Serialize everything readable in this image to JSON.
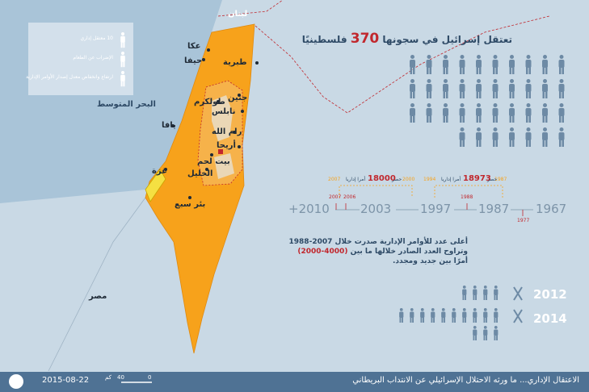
{
  "map": {
    "labels": [
      "لبنان",
      "عكا",
      "حيفا",
      "طبرية",
      "طولكرم",
      "نابلس",
      "جنين",
      "رام الله",
      "أريحا",
      "بيت لحم",
      "الخليل",
      "يافا",
      "غزة",
      "بئر سبع",
      "البحر المتوسط",
      "مصر"
    ]
  },
  "legend": {
    "items": [
      "10 معتقل إداري",
      "الإضراب عن الطعام",
      "ارتفاع وانخفاض معدل إصدار الأوامر الإدارية"
    ]
  },
  "headline": {
    "before": "تعتقل إسرائيل في سجونها",
    "number": "370",
    "after": "فلسطينيًا"
  },
  "timeline": {
    "years": [
      "1967",
      "1987",
      "1997",
      "2003",
      "+2010"
    ],
    "markers": [
      "1977",
      "1988",
      "2006",
      "2007"
    ],
    "ranges": [
      {
        "from": "1987",
        "to": "1994",
        "label": "حصر",
        "count": "18973",
        "unit": "أمرا إداريا"
      },
      {
        "from": "2000",
        "to": "2007",
        "label": "حصر",
        "count": "18000",
        "unit": "أمرا إداريا"
      }
    ]
  },
  "paragraph": {
    "line1": "أعلى عدد للأوامر الإدارية صدرت خلال 2007-1988",
    "line2a": "وتراوح العدد الصادر خلالها ما بين",
    "line2b": "(4000-2000)",
    "line3": "أمرًا بين جديد ومجدد."
  },
  "years": [
    "2012",
    "2014"
  ],
  "footer": {
    "title": "الاعتقال الإداري... ما ورثه الاحتلال الإسرائيلي عن الانتداب البريطاني",
    "date": "2015-08-22",
    "scale": [
      "0",
      "40",
      "كم"
    ]
  }
}
